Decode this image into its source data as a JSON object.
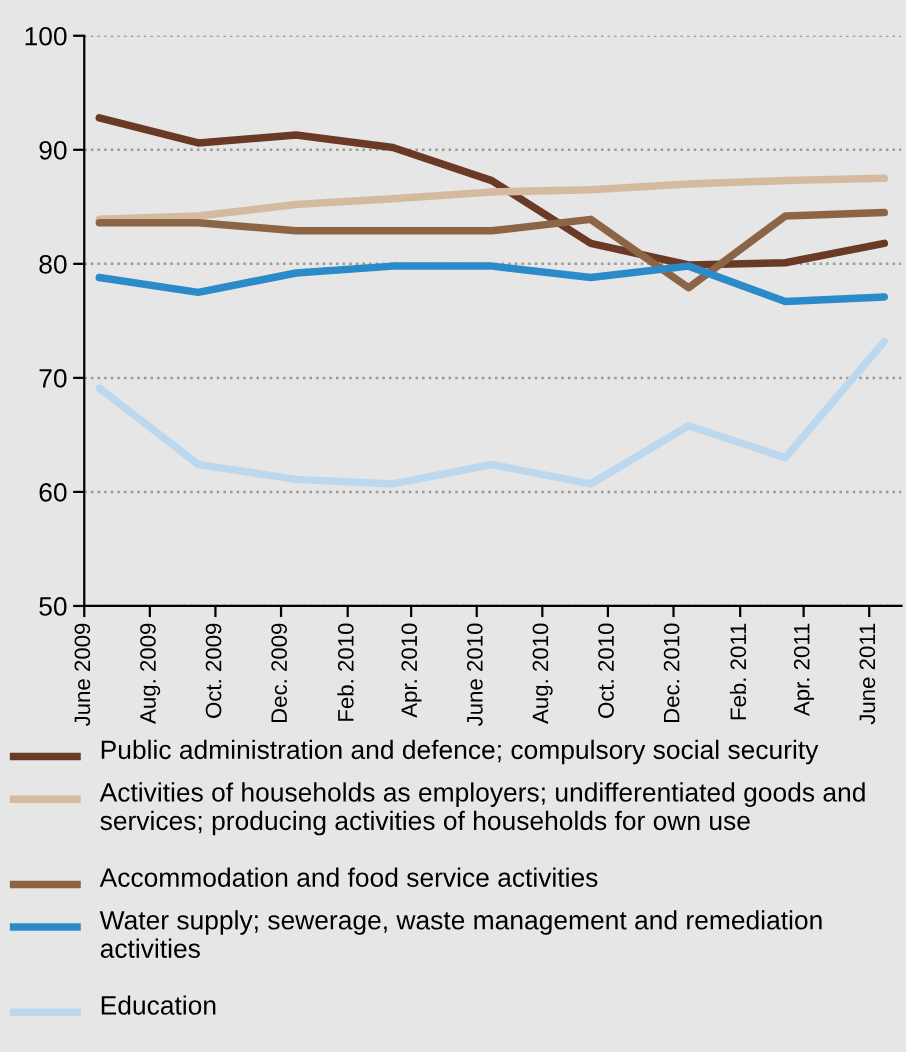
{
  "chart_data": {
    "type": "line",
    "x": [
      "2009-06-15",
      "2009-09-15",
      "2009-12-15",
      "2010-03-15",
      "2010-06-15",
      "2010-09-15",
      "2010-12-15",
      "2011-03-15",
      "2011-06-15"
    ],
    "series": [
      {
        "name": "Public administration and defence; compulsory social security",
        "color": "#6b3a26",
        "values": [
          92.8,
          90.6,
          91.3,
          90.2,
          87.3,
          81.8,
          79.9,
          80.1,
          81.8
        ]
      },
      {
        "name": "Activities of households as employers; undifferentiated goods and services; producing activities of households for own use",
        "color": "#d4bba0",
        "values": [
          83.9,
          84.2,
          85.2,
          85.7,
          86.3,
          86.5,
          87.0,
          87.3,
          87.5
        ]
      },
      {
        "name": "Accommodation and food service activities",
        "color": "#8c6546",
        "values": [
          83.6,
          83.6,
          82.9,
          82.9,
          82.9,
          83.9,
          77.9,
          84.2,
          84.5
        ]
      },
      {
        "name": "Water supply; sewerage, waste management and remediation activities",
        "color": "#2b8bc8",
        "values": [
          78.8,
          77.5,
          79.2,
          79.8,
          79.8,
          78.8,
          79.8,
          76.7,
          77.1
        ]
      },
      {
        "name": "Education",
        "color": "#bcd8ee",
        "values": [
          69.1,
          62.4,
          61.1,
          60.7,
          62.4,
          60.7,
          65.8,
          63.0,
          73.2
        ]
      }
    ],
    "xlim": [
      "2009-06-01",
      "2011-07-01"
    ],
    "xticks": [
      {
        "value": "2009-06-01",
        "label": "June 2009"
      },
      {
        "value": "2009-08-01",
        "label": "Aug. 2009"
      },
      {
        "value": "2009-10-01",
        "label": "Oct. 2009"
      },
      {
        "value": "2009-12-01",
        "label": "Dec. 2009"
      },
      {
        "value": "2010-02-01",
        "label": "Feb. 2010"
      },
      {
        "value": "2010-04-01",
        "label": "Apr. 2010"
      },
      {
        "value": "2010-06-01",
        "label": "June 2010"
      },
      {
        "value": "2010-08-01",
        "label": "Aug. 2010"
      },
      {
        "value": "2010-10-01",
        "label": "Oct. 2010"
      },
      {
        "value": "2010-12-01",
        "label": "Dec. 2010"
      },
      {
        "value": "2011-02-01",
        "label": "Feb. 2011"
      },
      {
        "value": "2011-04-01",
        "label": "Apr. 2011"
      },
      {
        "value": "2011-06-01",
        "label": "June 2011"
      }
    ],
    "ylim": [
      50,
      100
    ],
    "yticks": [
      50,
      60,
      70,
      80,
      90,
      100
    ],
    "grid": "y",
    "legend": "bottom",
    "marker": "none",
    "line_style": "solid"
  }
}
